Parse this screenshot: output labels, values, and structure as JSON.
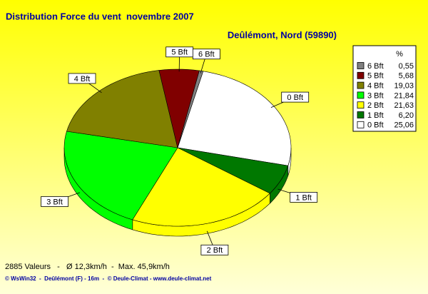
{
  "chart_data": {
    "type": "pie",
    "title": "Distribution Force du vent  novembre 2007",
    "subtitle": "Deûlémont, Nord (59890)",
    "categories": [
      "0 Bft",
      "1 Bft",
      "2 Bft",
      "3 Bft",
      "4 Bft",
      "5 Bft",
      "6 Bft"
    ],
    "values": [
      25.06,
      6.2,
      21.63,
      21.84,
      19.03,
      5.68,
      0.55
    ],
    "value_labels": [
      "25,06",
      "6,20",
      "21,63",
      "21,84",
      "19,03",
      "5,68",
      "0,55"
    ],
    "colors": [
      "#ffffff",
      "#007800",
      "#ffff00",
      "#00ff00",
      "#808000",
      "#800000",
      "#808080"
    ],
    "legend_title": "%",
    "legend": "right",
    "footer": [
      "2885 Valeurs   -   Ø 12,3km/h  -  Max. 45,9km/h",
      "© WsWin32  -  Deûlémont (F) - 16m  -  © Deule-Climat - www.deule-climat.net"
    ]
  }
}
